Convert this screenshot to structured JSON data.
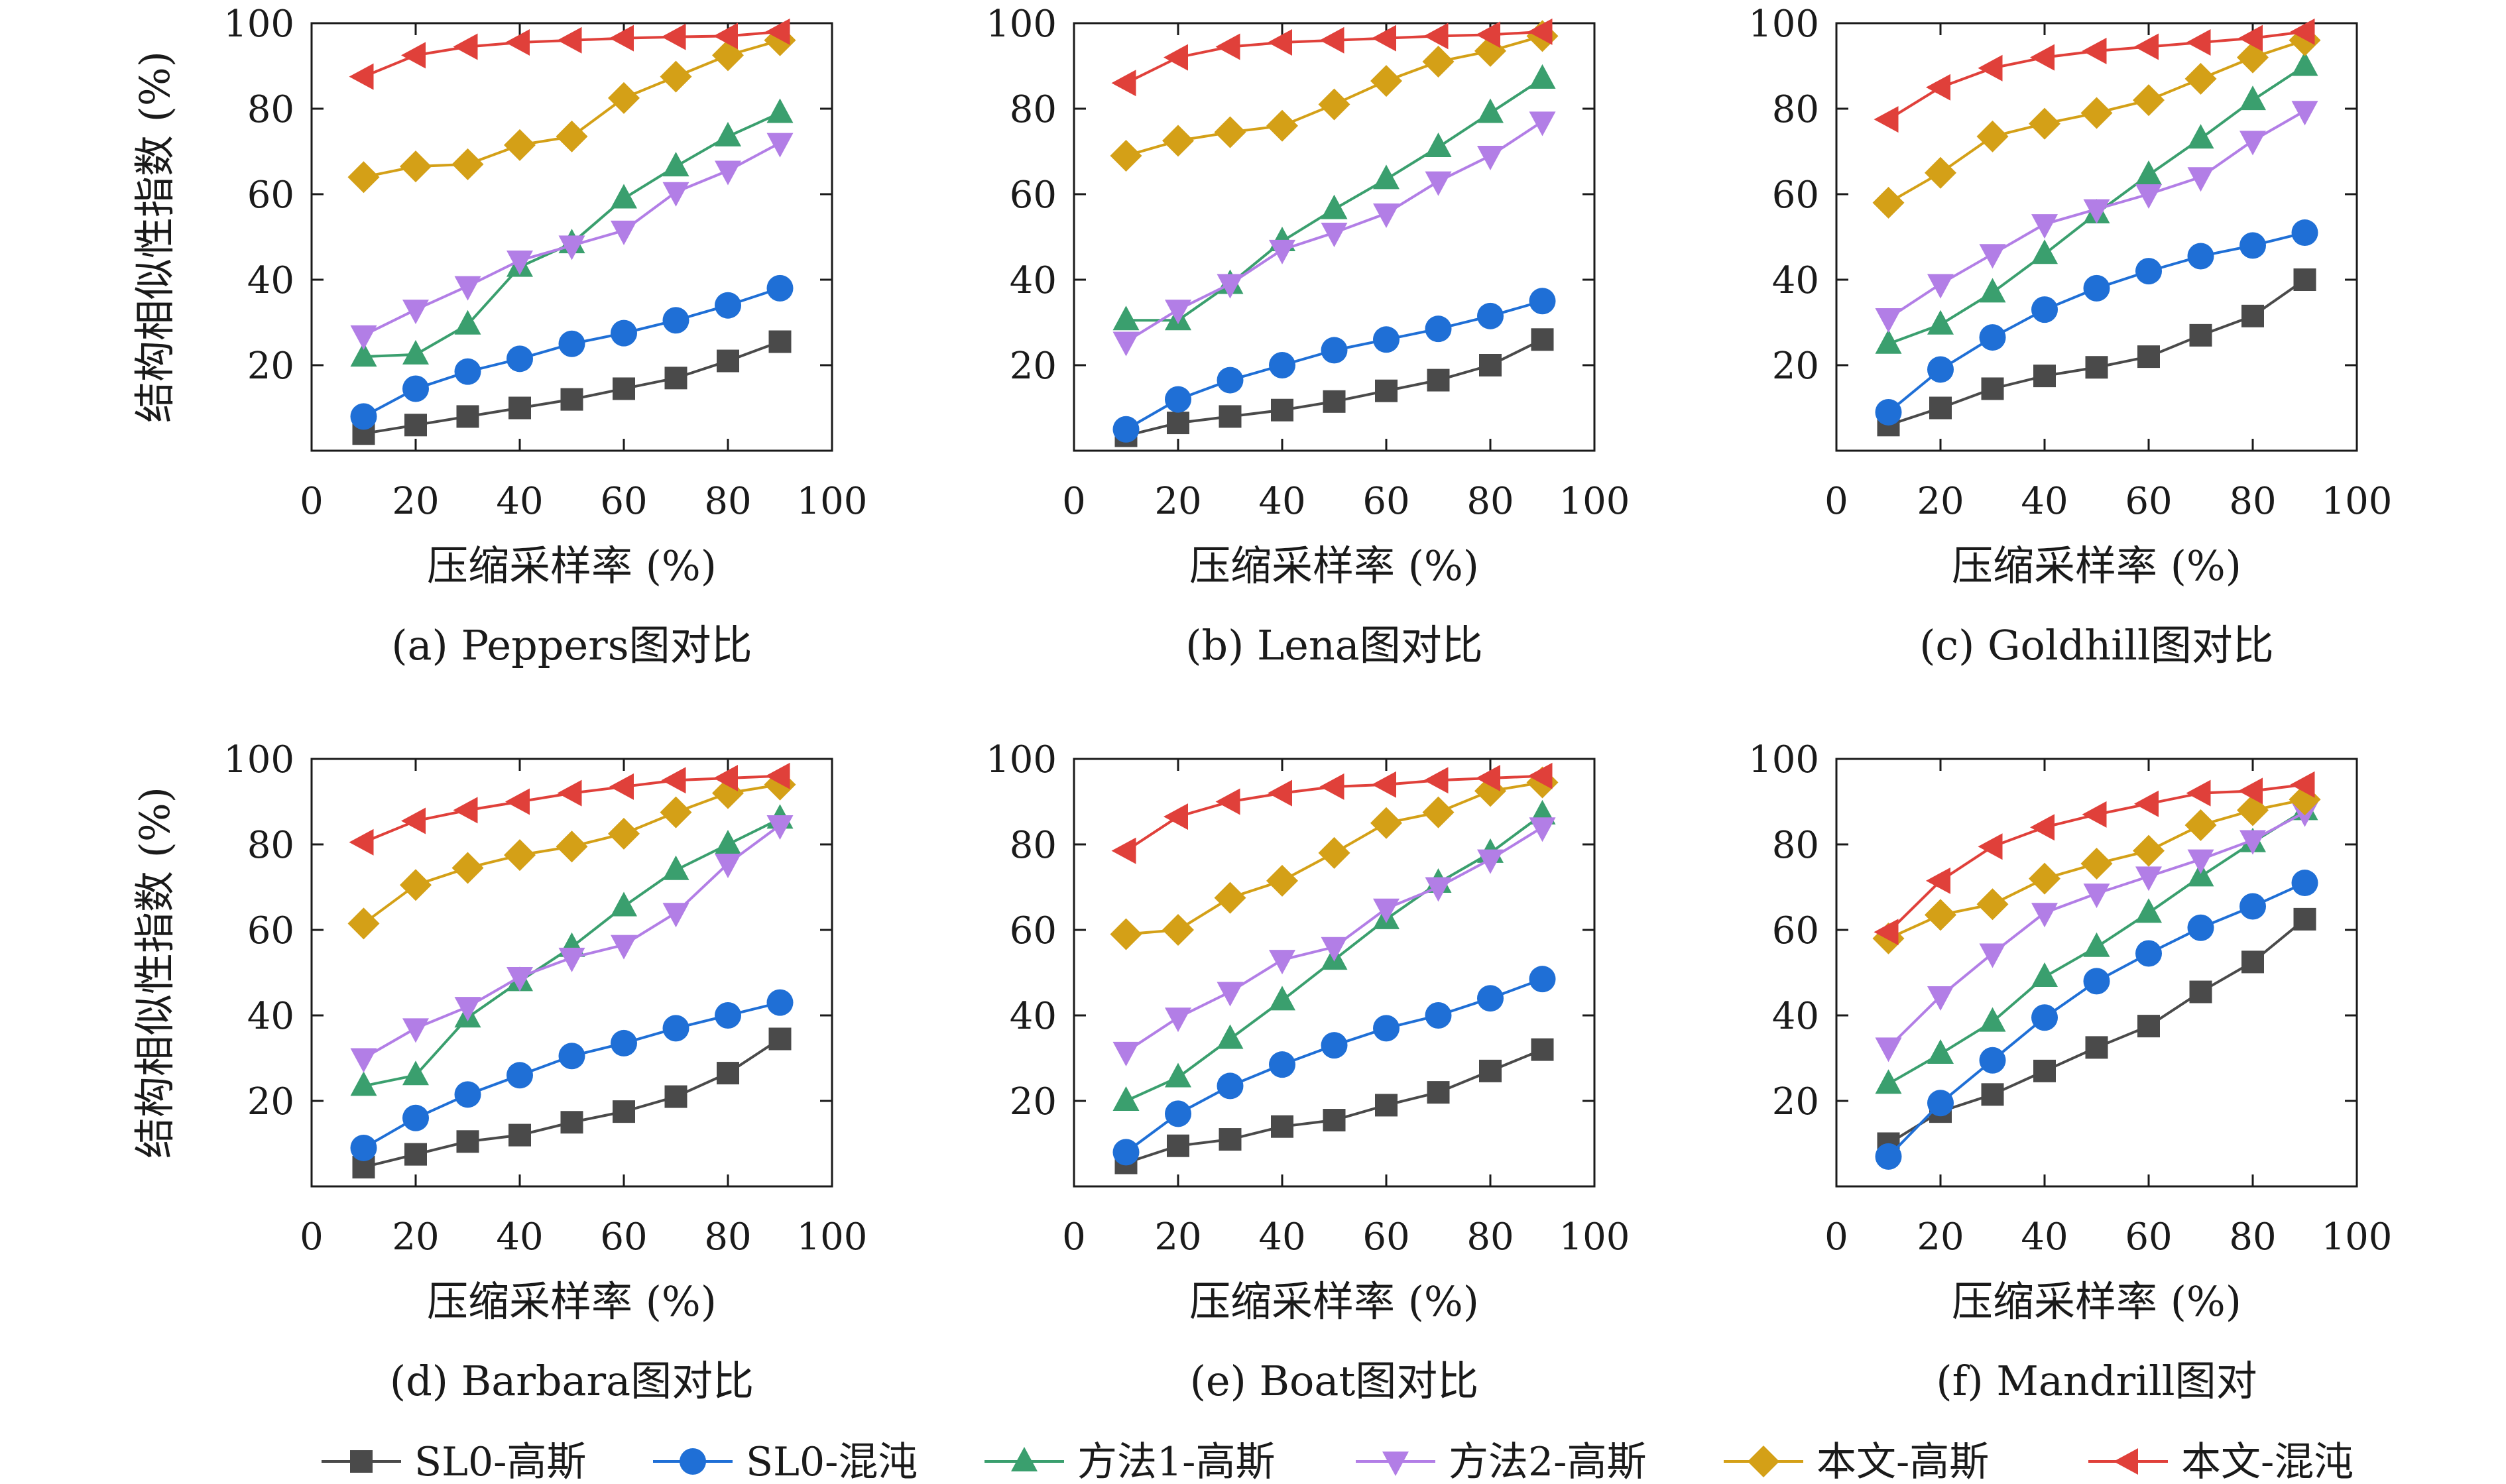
{
  "figure": {
    "ylabel": "结构相似性指数 (%)",
    "xlabel": "压缩采样率 (%)",
    "legend": [
      {
        "key": "sl0_gauss",
        "label": "SL0-高斯",
        "color": "#4a4a4a",
        "marker": "square"
      },
      {
        "key": "sl0_chaos",
        "label": "SL0-混沌",
        "color": "#1f6fd6",
        "marker": "circle"
      },
      {
        "key": "m1_gauss",
        "label": "方法1-高斯",
        "color": "#3a9f6e",
        "marker": "triangle-up"
      },
      {
        "key": "m2_gauss",
        "label": "方法2-高斯",
        "color": "#b27ee6",
        "marker": "triangle-down"
      },
      {
        "key": "ours_gauss",
        "label": "本文-高斯",
        "color": "#d4a017",
        "marker": "diamond"
      },
      {
        "key": "ours_chaos",
        "label": "本文-混沌",
        "color": "#e0403a",
        "marker": "triangle-left"
      }
    ]
  },
  "chart_data": [
    {
      "type": "line",
      "caption": "(a) Peppers图对比",
      "xlabel": "压缩采样率 (%)",
      "ylabel": "结构相似性指数 (%)",
      "xlim": [
        0,
        100
      ],
      "ylim": [
        0,
        100
      ],
      "xticks": [
        0,
        20,
        40,
        60,
        80,
        100
      ],
      "yticks": [
        20,
        40,
        60,
        80,
        100
      ],
      "x": [
        10,
        20,
        30,
        40,
        50,
        60,
        70,
        80,
        90
      ],
      "series": [
        {
          "name": "SL0-高斯",
          "values": [
            4,
            6,
            8,
            10,
            12,
            14.5,
            17,
            21,
            25.5
          ]
        },
        {
          "name": "SL0-混沌",
          "values": [
            8,
            14.5,
            18.5,
            21.5,
            25,
            27.5,
            30.5,
            34,
            38
          ]
        },
        {
          "name": "方法1-高斯",
          "values": [
            22,
            22.5,
            29.5,
            43,
            48.5,
            59,
            66.5,
            73.5,
            79
          ]
        },
        {
          "name": "方法2-高斯",
          "values": [
            27,
            33,
            38.5,
            44.5,
            48,
            51.5,
            60.5,
            65.5,
            72
          ]
        },
        {
          "name": "本文-高斯",
          "values": [
            64,
            66.5,
            67,
            71.5,
            73.5,
            82.5,
            87.5,
            92.5,
            96
          ]
        },
        {
          "name": "本文-混沌",
          "values": [
            87.5,
            92.5,
            94.5,
            95.5,
            96,
            96.5,
            96.8,
            97,
            98
          ]
        }
      ]
    },
    {
      "type": "line",
      "caption": "(b) Lena图对比",
      "xlabel": "压缩采样率 (%)",
      "ylabel": "",
      "xlim": [
        0,
        100
      ],
      "ylim": [
        0,
        100
      ],
      "xticks": [
        0,
        20,
        40,
        60,
        80,
        100
      ],
      "yticks": [
        20,
        40,
        60,
        80,
        100
      ],
      "x": [
        10,
        20,
        30,
        40,
        50,
        60,
        70,
        80,
        90
      ],
      "series": [
        {
          "name": "SL0-高斯",
          "values": [
            3.5,
            6.5,
            8,
            9.5,
            11.5,
            14,
            16.5,
            20,
            26
          ]
        },
        {
          "name": "SL0-混沌",
          "values": [
            5,
            12,
            16.5,
            20,
            23.5,
            26,
            28.5,
            31.5,
            35
          ]
        },
        {
          "name": "方法1-高斯",
          "values": [
            30.5,
            30.5,
            39,
            49,
            56.5,
            63.5,
            71,
            79,
            87
          ]
        },
        {
          "name": "方法2-高斯",
          "values": [
            25.5,
            33,
            39,
            47,
            51,
            55.5,
            63,
            69,
            77
          ]
        },
        {
          "name": "本文-高斯",
          "values": [
            69,
            72.5,
            74.5,
            76,
            81,
            86.5,
            91,
            93.5,
            97
          ]
        },
        {
          "name": "本文-混沌",
          "values": [
            86,
            92,
            94.5,
            95.5,
            96,
            96.5,
            97,
            97.3,
            98
          ]
        }
      ]
    },
    {
      "type": "line",
      "caption": "(c) Goldhill图对比",
      "xlabel": "压缩采样率 (%)",
      "ylabel": "",
      "xlim": [
        0,
        100
      ],
      "ylim": [
        0,
        100
      ],
      "xticks": [
        0,
        20,
        40,
        60,
        80,
        100
      ],
      "yticks": [
        20,
        40,
        60,
        80,
        100
      ],
      "x": [
        10,
        20,
        30,
        40,
        50,
        60,
        70,
        80,
        90
      ],
      "series": [
        {
          "name": "SL0-高斯",
          "values": [
            6,
            10,
            14.5,
            17.5,
            19.5,
            22,
            27,
            31.5,
            40
          ]
        },
        {
          "name": "SL0-混沌",
          "values": [
            9,
            19,
            26.5,
            33,
            38,
            42,
            45.5,
            48,
            51
          ]
        },
        {
          "name": "方法1-高斯",
          "values": [
            25,
            29.5,
            37,
            46,
            55.5,
            64.5,
            73,
            82,
            90
          ]
        },
        {
          "name": "方法2-高斯",
          "values": [
            31,
            39,
            46,
            53,
            56.5,
            60,
            64,
            72.5,
            79.5
          ]
        },
        {
          "name": "本文-高斯",
          "values": [
            58,
            65,
            73.5,
            76.5,
            79,
            82,
            87,
            92,
            96
          ]
        },
        {
          "name": "本文-混沌",
          "values": [
            77.5,
            85,
            89.5,
            92,
            93.5,
            94.5,
            95.5,
            96.5,
            98
          ]
        }
      ]
    },
    {
      "type": "line",
      "caption": "(d) Barbara图对比",
      "xlabel": "压缩采样率 (%)",
      "ylabel": "结构相似性指数 (%)",
      "xlim": [
        0,
        100
      ],
      "ylim": [
        0,
        100
      ],
      "xticks": [
        0,
        20,
        40,
        60,
        80,
        100
      ],
      "yticks": [
        20,
        40,
        60,
        80,
        100
      ],
      "x": [
        10,
        20,
        30,
        40,
        50,
        60,
        70,
        80,
        90
      ],
      "series": [
        {
          "name": "SL0-高斯",
          "values": [
            4.5,
            7.5,
            10.5,
            12,
            15,
            17.5,
            21,
            26.5,
            34.5
          ]
        },
        {
          "name": "SL0-混沌",
          "values": [
            9,
            16,
            21.5,
            26,
            30.5,
            33.5,
            37,
            40,
            43
          ]
        },
        {
          "name": "方法1-高斯",
          "values": [
            23.5,
            26,
            39.5,
            48,
            56,
            65.5,
            74,
            80,
            86
          ]
        },
        {
          "name": "方法2-高斯",
          "values": [
            30,
            37,
            42,
            49,
            53.5,
            56.5,
            64,
            75.5,
            84.5
          ]
        },
        {
          "name": "本文-高斯",
          "values": [
            61.5,
            70.5,
            74.5,
            77.5,
            79.5,
            82.5,
            87.5,
            92,
            94
          ]
        },
        {
          "name": "本文-混沌",
          "values": [
            80.5,
            85.5,
            88,
            90,
            92,
            93.5,
            95,
            95.5,
            96
          ]
        }
      ]
    },
    {
      "type": "line",
      "caption": "(e) Boat图对比",
      "xlabel": "压缩采样率 (%)",
      "ylabel": "",
      "xlim": [
        0,
        100
      ],
      "ylim": [
        0,
        100
      ],
      "xticks": [
        0,
        20,
        40,
        60,
        80,
        100
      ],
      "yticks": [
        20,
        40,
        60,
        80,
        100
      ],
      "x": [
        10,
        20,
        30,
        40,
        50,
        60,
        70,
        80,
        90
      ],
      "series": [
        {
          "name": "SL0-高斯",
          "values": [
            5.5,
            9.5,
            11,
            14,
            15.5,
            19,
            22,
            27,
            32
          ]
        },
        {
          "name": "SL0-混沌",
          "values": [
            8,
            17,
            23.5,
            28.5,
            33,
            37,
            40,
            44,
            48.5
          ]
        },
        {
          "name": "方法1-高斯",
          "values": [
            20,
            25.5,
            34.5,
            43.5,
            53,
            62.5,
            71,
            78,
            87
          ]
        },
        {
          "name": "方法2-高斯",
          "values": [
            31.5,
            39.5,
            45.5,
            53,
            56,
            65,
            70,
            76.5,
            84
          ]
        },
        {
          "name": "本文-高斯",
          "values": [
            59,
            60,
            67.5,
            71.5,
            78,
            85,
            87.5,
            92.5,
            94.5
          ]
        },
        {
          "name": "本文-混沌",
          "values": [
            78.5,
            86.5,
            90,
            92,
            93.5,
            94,
            95,
            95.5,
            96
          ]
        }
      ]
    },
    {
      "type": "line",
      "caption": "(f) Mandrill图对",
      "xlabel": "压缩采样率 (%)",
      "ylabel": "",
      "xlim": [
        0,
        100
      ],
      "ylim": [
        0,
        100
      ],
      "xticks": [
        0,
        20,
        40,
        60,
        80,
        100
      ],
      "yticks": [
        20,
        40,
        60,
        80,
        100
      ],
      "x": [
        10,
        20,
        30,
        40,
        50,
        60,
        70,
        80,
        90
      ],
      "series": [
        {
          "name": "SL0-高斯",
          "values": [
            10,
            17.5,
            21.5,
            27,
            32.5,
            37.5,
            45.5,
            52.5,
            62.5
          ]
        },
        {
          "name": "SL0-混沌",
          "values": [
            7,
            19.5,
            29.5,
            39.5,
            48,
            54.5,
            60.5,
            65.5,
            71
          ]
        },
        {
          "name": "方法1-高斯",
          "values": [
            24,
            31,
            38.5,
            49,
            56,
            64,
            72.5,
            80.5,
            88
          ]
        },
        {
          "name": "方法2-高斯",
          "values": [
            32.5,
            44.5,
            54.5,
            64,
            68.5,
            72.5,
            76.5,
            81,
            87.5
          ]
        },
        {
          "name": "本文-高斯",
          "values": [
            58,
            63.5,
            66,
            72,
            75.5,
            78.5,
            84.5,
            88,
            90.5
          ]
        },
        {
          "name": "本文-混沌",
          "values": [
            59.5,
            71.5,
            79.5,
            84,
            87,
            89.5,
            92,
            92.5,
            94
          ]
        }
      ]
    }
  ]
}
